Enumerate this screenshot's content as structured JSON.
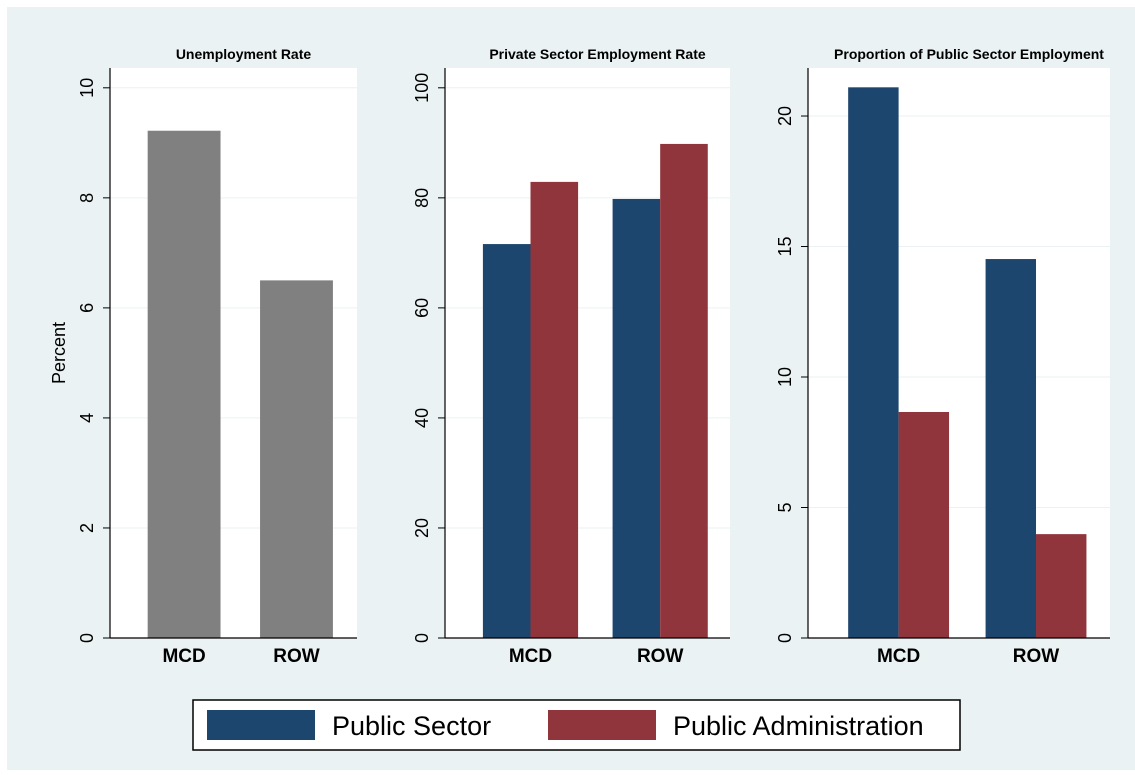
{
  "chart_data": [
    {
      "type": "bar",
      "title": "Unemployment Rate",
      "ylabel": "Percent",
      "categories": [
        "MCD",
        "ROW"
      ],
      "values": [
        9.22,
        6.5
      ],
      "color": "#808080",
      "ylim": [
        0,
        10.36
      ],
      "yticks": [
        0,
        2,
        4,
        6,
        8,
        10
      ],
      "grid": true
    },
    {
      "type": "grouped-bar",
      "title": "Private Sector Employment Rate",
      "categories": [
        "MCD",
        "ROW"
      ],
      "series": [
        {
          "name": "Public Sector",
          "color": "#1c466e",
          "values": [
            71.6,
            79.8
          ]
        },
        {
          "name": "Public Administration",
          "color": "#90353b",
          "values": [
            82.9,
            89.8
          ]
        }
      ],
      "ylim": [
        0,
        103.6
      ],
      "yticks": [
        0,
        20,
        40,
        60,
        80,
        100
      ],
      "grid": true
    },
    {
      "type": "grouped-bar",
      "title": "Proportion of Public Sector Employment",
      "categories": [
        "MCD",
        "ROW"
      ],
      "series": [
        {
          "name": "Public Sector",
          "color": "#1c466e",
          "values": [
            21.1,
            14.52
          ]
        },
        {
          "name": "Public Administration",
          "color": "#90353b",
          "values": [
            8.66,
            3.98
          ]
        }
      ],
      "ylim": [
        0,
        21.84
      ],
      "yticks": [
        0,
        5,
        10,
        15,
        20
      ],
      "grid": true
    }
  ]
}
